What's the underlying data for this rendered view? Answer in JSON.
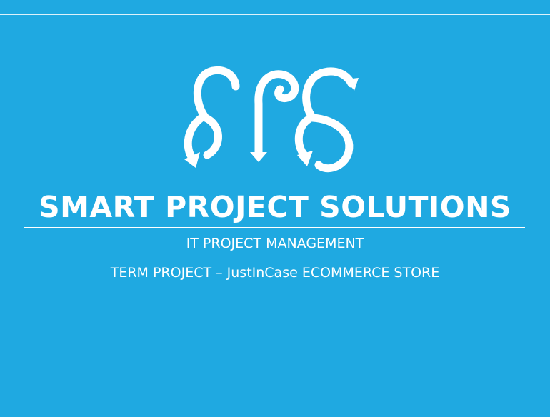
{
  "slide": {
    "logo": {
      "icon": "sps-swirl-arrows-logo"
    },
    "title": "SMART PROJECT SOLUTIONS",
    "subtitle_line1": "IT PROJECT MANAGEMENT",
    "subtitle_line2": "TERM PROJECT – JustInCase ECOMMERCE STORE",
    "colors": {
      "background": "#1fa9e1",
      "foreground": "#ffffff"
    }
  }
}
